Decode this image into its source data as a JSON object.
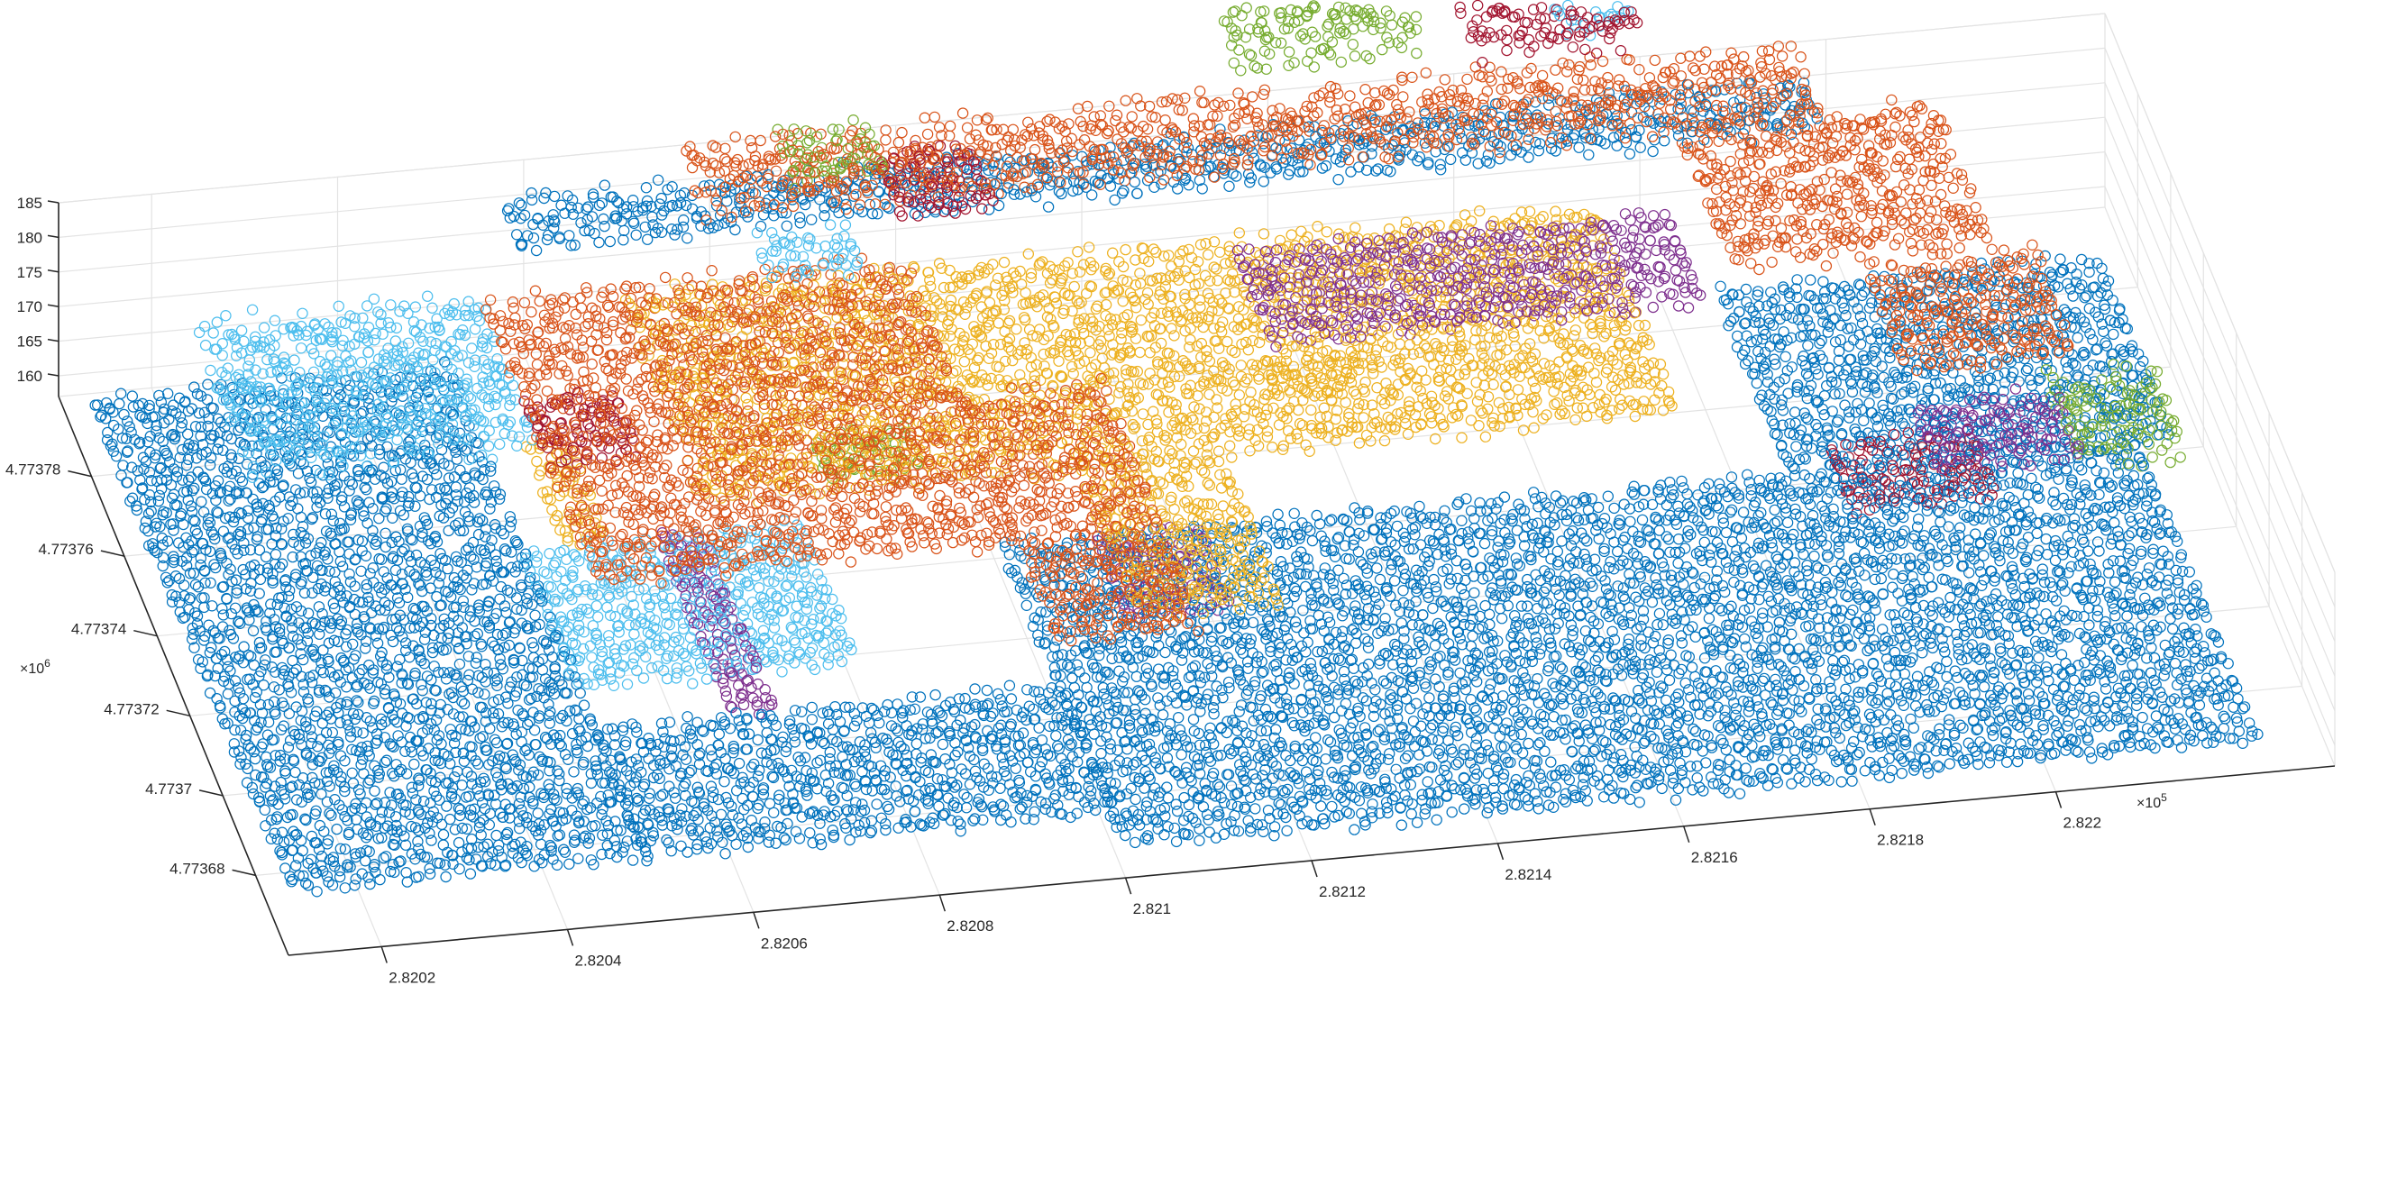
{
  "chart_data": {
    "type": "scatter",
    "projection": "3d",
    "marker": "open-circle",
    "grid": true,
    "legend": "none",
    "title": "",
    "xlabel": "",
    "ylabel": "",
    "zlabel": "",
    "x_ticks": [
      "2.8202",
      "2.8204",
      "2.8206",
      "2.8208",
      "2.821",
      "2.8212",
      "2.8214",
      "2.8216",
      "2.8218",
      "2.822"
    ],
    "x_exponent": {
      "base": "×10",
      "power": "5"
    },
    "y_ticks": [
      "4.77368",
      "4.7737",
      "4.77372",
      "4.77374",
      "4.77376",
      "4.77378"
    ],
    "y_exponent": {
      "base": "×10",
      "power": "6"
    },
    "z_ticks": [
      "160",
      "165",
      "170",
      "175",
      "180",
      "185"
    ],
    "xlim": [
      282010,
      282230
    ],
    "ylim": [
      4773660,
      4773800
    ],
    "zlim": [
      157,
      185
    ],
    "colors": {
      "blue": "#0072BD",
      "orange": "#D95319",
      "yellow": "#EDB120",
      "purple": "#7E2F8E",
      "green": "#77AC30",
      "cyan": "#4DBEEE",
      "red": "#A2142F"
    },
    "series": [
      {
        "color": "blue",
        "regions": [
          [
            282012,
            282050,
            4773668,
            4773790,
            161,
            163
          ],
          [
            282050,
            282100,
            4773668,
            4773700,
            161,
            163
          ],
          [
            282100,
            282222,
            4773660,
            4773735,
            161,
            163
          ],
          [
            282185,
            282226,
            4773735,
            4773780,
            161,
            163
          ],
          [
            282060,
            282200,
            4773800,
            4773812,
            171,
            174
          ]
        ]
      },
      {
        "color": "orange",
        "regions": [
          [
            282055,
            282100,
            4773725,
            4773795,
            167,
            170
          ],
          [
            282100,
            282115,
            4773700,
            4773760,
            167,
            170
          ],
          [
            282080,
            282200,
            4773800,
            4773815,
            173,
            177
          ],
          [
            282185,
            282212,
            4773770,
            4773805,
            170,
            174
          ],
          [
            282200,
            282218,
            4773750,
            4773775,
            165,
            168
          ]
        ]
      },
      {
        "color": "yellow",
        "regions": [
          [
            282070,
            282175,
            4773745,
            4773795,
            165,
            168
          ],
          [
            282110,
            282125,
            4773708,
            4773745,
            165,
            168
          ],
          [
            282055,
            282060,
            4773745,
            4773770,
            161,
            163
          ],
          [
            282135,
            282145,
            4773765,
            4773773,
            161,
            163
          ]
        ]
      },
      {
        "color": "purple",
        "regions": [
          [
            282135,
            282182,
            4773768,
            4773790,
            167,
            169
          ],
          [
            282065,
            282070,
            4773700,
            4773745,
            161,
            163
          ],
          [
            282200,
            282215,
            4773730,
            4773745,
            162,
            165
          ],
          [
            282110,
            282122,
            4773715,
            4773735,
            161,
            163
          ]
        ]
      },
      {
        "color": "green",
        "regions": [
          [
            282215,
            282226,
            4773730,
            4773750,
            161,
            165
          ],
          [
            282090,
            282100,
            4773805,
            4773815,
            174,
            178
          ],
          [
            282140,
            282160,
            4773815,
            4773830,
            178,
            184
          ],
          [
            282085,
            282095,
            4773755,
            4773765,
            161,
            163
          ]
        ]
      },
      {
        "color": "cyan",
        "regions": [
          [
            282025,
            282055,
            4773765,
            4773800,
            163,
            168
          ],
          [
            282050,
            282080,
            4773710,
            4773745,
            161,
            163
          ],
          [
            282175,
            282182,
            4773818,
            4773826,
            178,
            181
          ],
          [
            282085,
            282095,
            4773790,
            4773800,
            170,
            172
          ]
        ]
      },
      {
        "color": "red",
        "regions": [
          [
            282165,
            282182,
            4773810,
            4773830,
            180,
            184
          ],
          [
            282055,
            282065,
            4773755,
            4773770,
            167,
            169
          ],
          [
            282100,
            282110,
            4773795,
            4773810,
            174,
            176
          ],
          [
            282190,
            282205,
            4773725,
            4773740,
            161,
            163
          ]
        ]
      }
    ]
  }
}
